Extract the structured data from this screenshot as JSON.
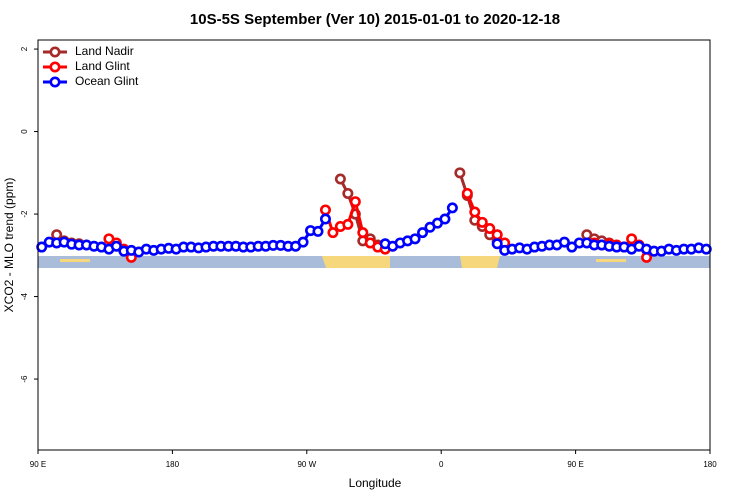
{
  "chart_data": {
    "type": "line",
    "title": "10S-5S September (Ver 10)   2015-01-01 to 2020-12-18",
    "x_label": "Longitude",
    "y_label": "XCO2 - MLO trend (ppm)",
    "xlim": [
      90,
      540
    ],
    "xticks": [
      {
        "value": 90,
        "label": "90 E"
      },
      180,
      {
        "value": 270,
        "label": "90 W"
      },
      {
        "value": 360,
        "label": "0"
      },
      {
        "value": 450,
        "label": "90 E"
      },
      {
        "value": 540,
        "label": "180"
      }
    ],
    "ylim": [
      -7.72,
      2.22
    ],
    "yticks": [
      2,
      0,
      -2,
      -4,
      -6
    ],
    "legend": "top-left",
    "series": [
      {
        "name": "Land Nadir",
        "color": "#a52a2a",
        "x": [
          102.5,
          107.5,
          112.5,
          117.5,
          200,
          292.5,
          297.5,
          302.5,
          307.5,
          312.5,
          317.5,
          322.5,
          350,
          372.5,
          377.5,
          382.5,
          387.5,
          392.5,
          397.5,
          430,
          457.5,
          462.5,
          467.5,
          472.5
        ],
        "values": [
          -2.5,
          -2.65,
          -2.7,
          -2.72,
          null,
          -1.15,
          -1.5,
          -2.0,
          -2.65,
          -2.6,
          -2.75,
          -2.8,
          null,
          -1.0,
          -1.55,
          -2.15,
          -2.3,
          -2.5,
          -2.65,
          null,
          -2.5,
          -2.6,
          -2.65,
          -2.7
        ]
      },
      {
        "name": "Land Glint",
        "color": "#ff0000",
        "x": [
          137.5,
          142.5,
          147.5,
          152.5,
          200,
          282.5,
          287.5,
          292.5,
          297.5,
          302.5,
          307.5,
          312.5,
          317.5,
          322.5,
          350,
          377.5,
          382.5,
          387.5,
          392.5,
          397.5,
          402.5,
          430,
          462.5,
          467.5,
          472.5,
          477.5,
          482.5,
          487.5,
          492.5,
          497.5
        ],
        "values": [
          -2.6,
          -2.7,
          -2.85,
          -3.05,
          null,
          -1.9,
          -2.45,
          -2.3,
          -2.25,
          -1.7,
          -2.45,
          -2.7,
          -2.8,
          -2.85,
          null,
          -1.5,
          -1.95,
          -2.2,
          -2.35,
          -2.5,
          -2.7,
          null,
          -2.7,
          -2.75,
          -2.72,
          -2.75,
          -2.8,
          -2.6,
          -2.75,
          -3.05
        ]
      },
      {
        "name": "Ocean Glint",
        "color": "#0000ff",
        "x": [
          92.5,
          97.5,
          102.5,
          107.5,
          112.5,
          117.5,
          122.5,
          127.5,
          132.5,
          137.5,
          142.5,
          147.5,
          152.5,
          157.5,
          162.5,
          167.5,
          172.5,
          177.5,
          182.5,
          187.5,
          192.5,
          197.5,
          202.5,
          207.5,
          212.5,
          217.5,
          222.5,
          227.5,
          232.5,
          237.5,
          242.5,
          247.5,
          252.5,
          257.5,
          262.5,
          267.5,
          272.5,
          277.5,
          282.5,
          300,
          322.5,
          327.5,
          332.5,
          337.5,
          342.5,
          347.5,
          352.5,
          357.5,
          362.5,
          367.5,
          380,
          397.5,
          402.5,
          407.5,
          412.5,
          417.5,
          422.5,
          427.5,
          432.5,
          437.5,
          442.5,
          447.5,
          452.5,
          457.5,
          462.5,
          467.5,
          472.5,
          477.5,
          482.5,
          487.5,
          492.5,
          497.5,
          502.5,
          507.5,
          512.5,
          517.5,
          522.5,
          527.5,
          532.5,
          537.5
        ],
        "values": [
          -2.8,
          -2.68,
          -2.7,
          -2.68,
          -2.73,
          -2.75,
          -2.75,
          -2.78,
          -2.8,
          -2.85,
          -2.78,
          -2.9,
          -2.88,
          -2.92,
          -2.85,
          -2.88,
          -2.85,
          -2.83,
          -2.85,
          -2.8,
          -2.8,
          -2.82,
          -2.8,
          -2.78,
          -2.78,
          -2.78,
          -2.78,
          -2.8,
          -2.8,
          -2.78,
          -2.78,
          -2.76,
          -2.76,
          -2.78,
          -2.78,
          -2.68,
          -2.4,
          -2.42,
          -2.12,
          null,
          -2.72,
          -2.78,
          -2.7,
          -2.65,
          -2.6,
          -2.45,
          -2.32,
          -2.22,
          -2.12,
          -1.85,
          null,
          -2.72,
          -2.88,
          -2.85,
          -2.82,
          -2.85,
          -2.8,
          -2.78,
          -2.75,
          -2.75,
          -2.68,
          -2.8,
          -2.7,
          -2.7,
          -2.75,
          -2.75,
          -2.78,
          -2.8,
          -2.8,
          -2.85,
          -2.78,
          -2.85,
          -2.9,
          -2.9,
          -2.85,
          -2.88,
          -2.85,
          -2.85,
          -2.82,
          -2.85
        ]
      }
    ]
  }
}
